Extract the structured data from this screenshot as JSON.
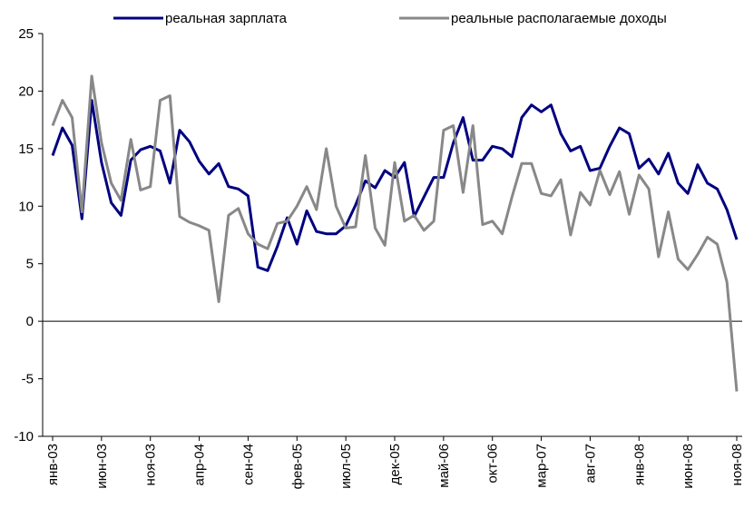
{
  "chart_data": {
    "type": "line",
    "categories": [
      "янв-03",
      null,
      null,
      null,
      null,
      "июн-03",
      null,
      null,
      null,
      null,
      "ноя-03",
      null,
      null,
      null,
      null,
      "апр-04",
      null,
      null,
      null,
      null,
      "сен-04",
      null,
      null,
      null,
      null,
      "фев-05",
      null,
      null,
      null,
      null,
      "июл-05",
      null,
      null,
      null,
      null,
      "дек-05",
      null,
      null,
      null,
      null,
      "май-06",
      null,
      null,
      null,
      null,
      "окт-06",
      null,
      null,
      null,
      null,
      "мар-07",
      null,
      null,
      null,
      null,
      "авг-07",
      null,
      null,
      null,
      null,
      "янв-08",
      null,
      null,
      null,
      null,
      "июн-08",
      null,
      null,
      null,
      null,
      "ноя-08"
    ],
    "series": [
      {
        "name": "реальная зарплата",
        "color": "#000080",
        "values": [
          14.4,
          16.8,
          15.3,
          8.9,
          19.2,
          13.8,
          10.3,
          9.2,
          14.0,
          14.9,
          15.2,
          14.8,
          12.0,
          16.6,
          15.6,
          13.9,
          12.8,
          13.7,
          11.7,
          11.5,
          10.9,
          4.7,
          4.4,
          6.5,
          9.0,
          6.7,
          9.6,
          7.8,
          7.6,
          7.6,
          8.3,
          10.1,
          12.2,
          11.6,
          13.1,
          12.5,
          13.8,
          9.1,
          10.8,
          12.5,
          12.5,
          15.5,
          17.7,
          14.0,
          14.0,
          15.2,
          15.0,
          14.3,
          17.7,
          18.8,
          18.2,
          18.8,
          16.3,
          14.8,
          15.2,
          13.1,
          13.3,
          15.2,
          16.8,
          16.3,
          13.3,
          14.1,
          12.8,
          14.6,
          12.0,
          11.1,
          13.6,
          12.0,
          11.5,
          9.7,
          7.1
        ]
      },
      {
        "name": "реальные располагаемые доходы",
        "color": "#888888",
        "values": [
          17.0,
          19.2,
          17.7,
          9.5,
          21.3,
          15.5,
          12.0,
          10.5,
          15.8,
          11.4,
          11.7,
          19.2,
          19.6,
          9.1,
          8.6,
          8.3,
          7.9,
          1.7,
          9.2,
          9.8,
          7.6,
          6.7,
          6.3,
          8.5,
          8.7,
          10.0,
          11.7,
          9.7,
          15.0,
          10.0,
          8.1,
          8.2,
          14.4,
          8.1,
          6.6,
          13.8,
          8.7,
          9.2,
          7.9,
          8.7,
          16.6,
          17.0,
          11.2,
          17.0,
          8.4,
          8.7,
          7.6,
          10.8,
          13.7,
          13.7,
          11.1,
          10.9,
          12.3,
          7.5,
          11.2,
          10.1,
          13.1,
          11.0,
          13.0,
          9.3,
          12.7,
          11.5,
          5.6,
          9.5,
          5.4,
          4.5,
          5.8,
          7.3,
          6.7,
          3.4,
          -6.1
        ]
      }
    ],
    "ylim": [
      -10,
      25
    ],
    "yticks": [
      -10,
      -5,
      0,
      5,
      10,
      15,
      20,
      25
    ],
    "legend": "top"
  }
}
